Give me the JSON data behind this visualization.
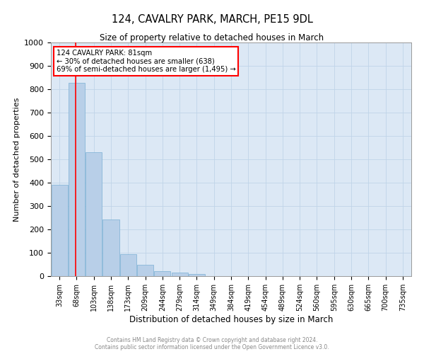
{
  "title": "124, CAVALRY PARK, MARCH, PE15 9DL",
  "subtitle": "Size of property relative to detached houses in March",
  "xlabel": "Distribution of detached houses by size in March",
  "ylabel": "Number of detached properties",
  "footer_line1": "Contains HM Land Registry data © Crown copyright and database right 2024.",
  "footer_line2": "Contains public sector information licensed under the Open Government Licence v3.0.",
  "annotation_line1": "124 CAVALRY PARK: 81sqm",
  "annotation_line2": "← 30% of detached houses are smaller (638)",
  "annotation_line3": "69% of semi-detached houses are larger (1,495) →",
  "categories": [
    "33sqm",
    "68sqm",
    "103sqm",
    "138sqm",
    "173sqm",
    "209sqm",
    "244sqm",
    "279sqm",
    "314sqm",
    "349sqm",
    "384sqm",
    "419sqm",
    "454sqm",
    "489sqm",
    "524sqm",
    "560sqm",
    "595sqm",
    "630sqm",
    "665sqm",
    "700sqm",
    "735sqm"
  ],
  "bar_heights": [
    390,
    828,
    530,
    243,
    95,
    48,
    22,
    15,
    10,
    0,
    0,
    0,
    0,
    0,
    0,
    0,
    0,
    0,
    0,
    0,
    0
  ],
  "ylim": [
    0,
    1000
  ],
  "yticks": [
    0,
    100,
    200,
    300,
    400,
    500,
    600,
    700,
    800,
    900,
    1000
  ],
  "bar_color": "#b8cfe8",
  "bar_edge_color": "#7aafd4",
  "red_line_x": 1.0,
  "ax_bg_color": "#dce8f5",
  "background_color": "#ffffff",
  "grid_color": "#c0d4e8"
}
